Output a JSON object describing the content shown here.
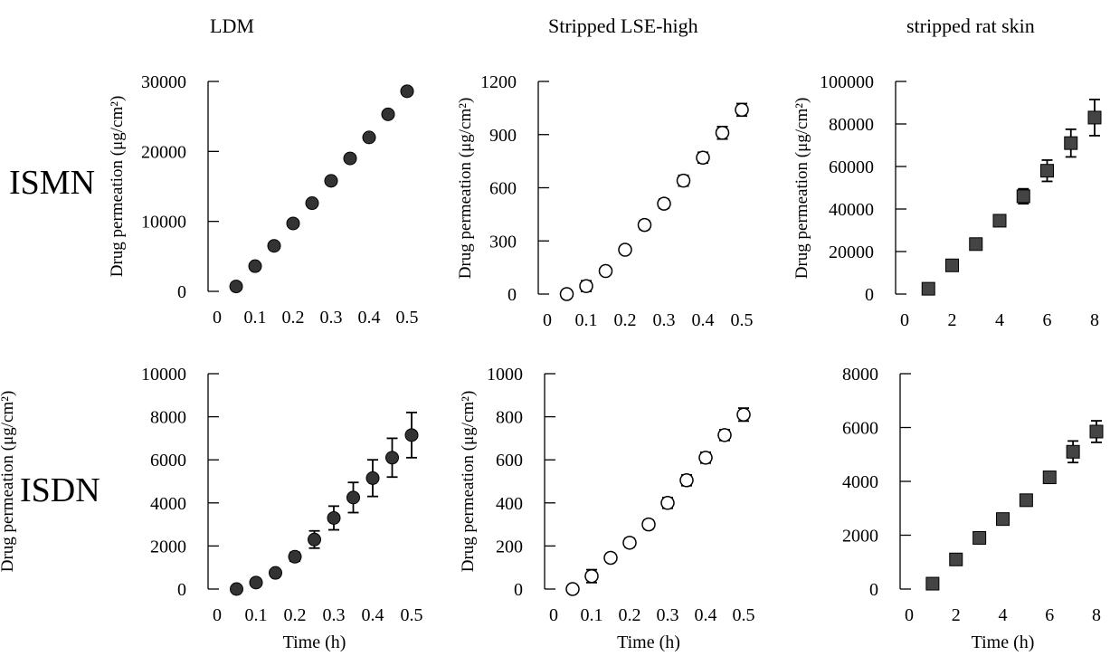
{
  "row_labels": [
    "ISMN",
    "ISDN"
  ],
  "col_titles": [
    "LDM",
    "Stripped LSE-high",
    "stripped rat skin"
  ],
  "chart_data": [
    {
      "type": "scatter",
      "row": "ISMN",
      "title": "LDM",
      "ylabel": "Drug permeation (μg/cm²)",
      "xlabel": "",
      "xlim": [
        0,
        0.5
      ],
      "ylim": [
        0,
        30000
      ],
      "xticks": [
        0,
        0.1,
        0.2,
        0.3,
        0.4,
        0.5
      ],
      "yticks": [
        0,
        10000,
        20000,
        30000
      ],
      "marker": "filled-circle",
      "points": [
        {
          "x": 0.05,
          "y": 700,
          "err": 0
        },
        {
          "x": 0.1,
          "y": 3600,
          "err": 0
        },
        {
          "x": 0.15,
          "y": 6500,
          "err": 0
        },
        {
          "x": 0.2,
          "y": 9700,
          "err": 0
        },
        {
          "x": 0.25,
          "y": 12600,
          "err": 0
        },
        {
          "x": 0.3,
          "y": 15800,
          "err": 0
        },
        {
          "x": 0.35,
          "y": 19000,
          "err": 0
        },
        {
          "x": 0.4,
          "y": 22000,
          "err": 0
        },
        {
          "x": 0.45,
          "y": 25300,
          "err": 0
        },
        {
          "x": 0.5,
          "y": 28600,
          "err": 0
        }
      ]
    },
    {
      "type": "scatter",
      "row": "ISMN",
      "title": "Stripped LSE-high",
      "ylabel": "Drug permeation (μg/cm²)",
      "xlabel": "",
      "xlim": [
        0,
        0.5
      ],
      "ylim": [
        0,
        1200
      ],
      "xticks": [
        0,
        0.1,
        0.2,
        0.3,
        0.4,
        0.5
      ],
      "yticks": [
        0,
        300,
        600,
        900,
        1200
      ],
      "marker": "open-circle",
      "points": [
        {
          "x": 0.05,
          "y": 0,
          "err": 0
        },
        {
          "x": 0.1,
          "y": 45,
          "err": 30
        },
        {
          "x": 0.15,
          "y": 130,
          "err": 20
        },
        {
          "x": 0.2,
          "y": 250,
          "err": 20
        },
        {
          "x": 0.25,
          "y": 390,
          "err": 25
        },
        {
          "x": 0.3,
          "y": 510,
          "err": 25
        },
        {
          "x": 0.35,
          "y": 640,
          "err": 30
        },
        {
          "x": 0.4,
          "y": 770,
          "err": 30
        },
        {
          "x": 0.45,
          "y": 910,
          "err": 35
        },
        {
          "x": 0.5,
          "y": 1040,
          "err": 35
        }
      ]
    },
    {
      "type": "scatter",
      "row": "ISMN",
      "title": "stripped rat skin",
      "ylabel": "Drug permeation (μg/cm²)",
      "xlabel": "",
      "xlim": [
        0,
        8
      ],
      "ylim": [
        0,
        100000
      ],
      "xticks": [
        0,
        2,
        4,
        6,
        8
      ],
      "yticks": [
        0,
        20000,
        40000,
        60000,
        80000,
        100000
      ],
      "marker": "filled-square",
      "points": [
        {
          "x": 1,
          "y": 2500,
          "err": 0
        },
        {
          "x": 2,
          "y": 13500,
          "err": 1500
        },
        {
          "x": 3,
          "y": 23500,
          "err": 1500
        },
        {
          "x": 4,
          "y": 34500,
          "err": 2500
        },
        {
          "x": 5,
          "y": 46000,
          "err": 3500
        },
        {
          "x": 6,
          "y": 58000,
          "err": 5000
        },
        {
          "x": 7,
          "y": 71000,
          "err": 6500
        },
        {
          "x": 8,
          "y": 83000,
          "err": 8500
        }
      ]
    },
    {
      "type": "scatter",
      "row": "ISDN",
      "title": "LDM",
      "ylabel": "Drug permeation (μg/cm²)",
      "xlabel": "Time (h)",
      "xlim": [
        0,
        0.5
      ],
      "ylim": [
        0,
        10000
      ],
      "xticks": [
        0,
        0.1,
        0.2,
        0.3,
        0.4,
        0.5
      ],
      "yticks": [
        0,
        2000,
        4000,
        6000,
        8000,
        10000
      ],
      "marker": "filled-circle",
      "points": [
        {
          "x": 0.05,
          "y": 0,
          "err": 0
        },
        {
          "x": 0.1,
          "y": 300,
          "err": 100
        },
        {
          "x": 0.15,
          "y": 750,
          "err": 150
        },
        {
          "x": 0.2,
          "y": 1500,
          "err": 200
        },
        {
          "x": 0.25,
          "y": 2300,
          "err": 400
        },
        {
          "x": 0.3,
          "y": 3300,
          "err": 550
        },
        {
          "x": 0.35,
          "y": 4250,
          "err": 700
        },
        {
          "x": 0.4,
          "y": 5150,
          "err": 850
        },
        {
          "x": 0.45,
          "y": 6100,
          "err": 900
        },
        {
          "x": 0.5,
          "y": 7150,
          "err": 1050
        }
      ]
    },
    {
      "type": "scatter",
      "row": "ISDN",
      "title": "Stripped LSE-high",
      "ylabel": "Drug permeation (μg/cm²)",
      "xlabel": "Time (h)",
      "xlim": [
        0,
        0.5
      ],
      "ylim": [
        0,
        1000
      ],
      "xticks": [
        0,
        0.1,
        0.2,
        0.3,
        0.4,
        0.5
      ],
      "yticks": [
        0,
        200,
        400,
        600,
        800,
        1000
      ],
      "marker": "open-circle",
      "points": [
        {
          "x": 0.05,
          "y": 0,
          "err": 0
        },
        {
          "x": 0.1,
          "y": 60,
          "err": 30
        },
        {
          "x": 0.15,
          "y": 145,
          "err": 15
        },
        {
          "x": 0.2,
          "y": 215,
          "err": 20
        },
        {
          "x": 0.25,
          "y": 300,
          "err": 20
        },
        {
          "x": 0.3,
          "y": 400,
          "err": 25
        },
        {
          "x": 0.35,
          "y": 505,
          "err": 25
        },
        {
          "x": 0.4,
          "y": 610,
          "err": 25
        },
        {
          "x": 0.45,
          "y": 715,
          "err": 25
        },
        {
          "x": 0.5,
          "y": 810,
          "err": 30
        }
      ]
    },
    {
      "type": "scatter",
      "row": "ISDN",
      "title": "stripped rat skin",
      "ylabel": "Drug permeation (μg/cm²)",
      "xlabel": "Time (h)",
      "xlim": [
        0,
        8
      ],
      "ylim": [
        0,
        8000
      ],
      "xticks": [
        0,
        2,
        4,
        6,
        8
      ],
      "yticks": [
        0,
        2000,
        4000,
        6000,
        8000
      ],
      "marker": "filled-square",
      "points": [
        {
          "x": 1,
          "y": 200,
          "err": 0
        },
        {
          "x": 2,
          "y": 1100,
          "err": 100
        },
        {
          "x": 3,
          "y": 1900,
          "err": 100
        },
        {
          "x": 4,
          "y": 2600,
          "err": 120
        },
        {
          "x": 5,
          "y": 3300,
          "err": 150
        },
        {
          "x": 6,
          "y": 4150,
          "err": 200
        },
        {
          "x": 7,
          "y": 5100,
          "err": 400
        },
        {
          "x": 8,
          "y": 5850,
          "err": 400
        }
      ]
    }
  ]
}
